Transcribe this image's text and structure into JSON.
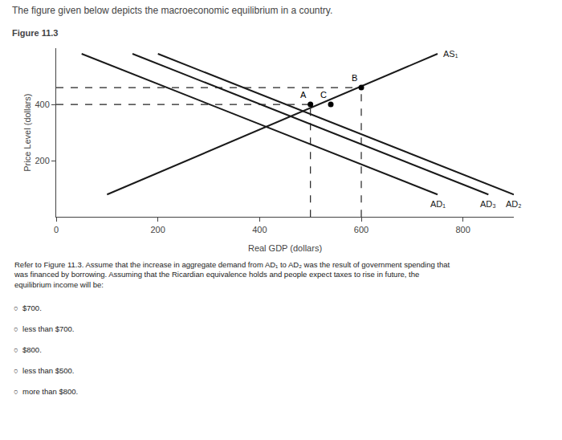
{
  "chart_data": {
    "type": "line",
    "title": "The figure given below depicts the macroeconomic equilibrium in a country.",
    "subtitle": "Figure 11.3",
    "xlabel": "Real GDP (dollars)",
    "ylabel": "Price Level (dollars)",
    "xlim": [
      0,
      900
    ],
    "ylim": [
      0,
      600
    ],
    "xticks": [
      0,
      200,
      400,
      600,
      800
    ],
    "yticks": [
      200,
      400
    ],
    "grid": false,
    "series": [
      {
        "name": "AS₁",
        "color": "#1a1a1a",
        "line_style": "solid",
        "x": [
          100,
          750
        ],
        "values": [
          80,
          580
        ]
      },
      {
        "name": "AD₁",
        "color": "#1a1a1a",
        "line_style": "solid",
        "x": [
          50,
          750
        ],
        "values": [
          580,
          80
        ]
      },
      {
        "name": "AD₃",
        "color": "#1a1a1a",
        "line_style": "solid",
        "x": [
          150,
          850
        ],
        "values": [
          580,
          80
        ]
      },
      {
        "name": "AD₂",
        "color": "#1a1a1a",
        "line_style": "solid",
        "x": [
          200,
          900
        ],
        "values": [
          580,
          80
        ]
      },
      {
        "color": "#222222",
        "line_style": "dashed",
        "x": [
          500,
          500
        ],
        "values": [
          0,
          400
        ]
      },
      {
        "color": "#222222",
        "line_style": "dashed",
        "x": [
          600,
          600
        ],
        "values": [
          0,
          460
        ]
      },
      {
        "color": "#222222",
        "line_style": "dashed",
        "x": [
          0,
          500
        ],
        "values": [
          400,
          400
        ]
      },
      {
        "color": "#222222",
        "line_style": "dashed",
        "x": [
          0,
          600
        ],
        "values": [
          460,
          460
        ]
      },
      {
        "name": "A",
        "type": "scatter",
        "marker": "circle",
        "color": "#000000",
        "x": [
          500
        ],
        "values": [
          400
        ]
      },
      {
        "name": "B",
        "type": "scatter",
        "marker": "circle",
        "color": "#000000",
        "x": [
          600
        ],
        "values": [
          460
        ]
      },
      {
        "name": "C",
        "type": "scatter",
        "marker": "circle",
        "color": "#000000",
        "x": [
          540
        ],
        "values": [
          400
        ]
      }
    ],
    "annotations": [
      "Refer to Figure 11.3. Assume that the increase in aggregate demand from AD₁ to AD₂ was the result of government spending that\nwas financed by borrowing. Assuming that the Ricardian equivalence holds and people expect taxes to rise in future, the\nequilibrium income will be:",
      "○  $700.",
      "○  less than $700.",
      "○  $800.",
      "○  less than $500.",
      "○  more than $800."
    ]
  }
}
